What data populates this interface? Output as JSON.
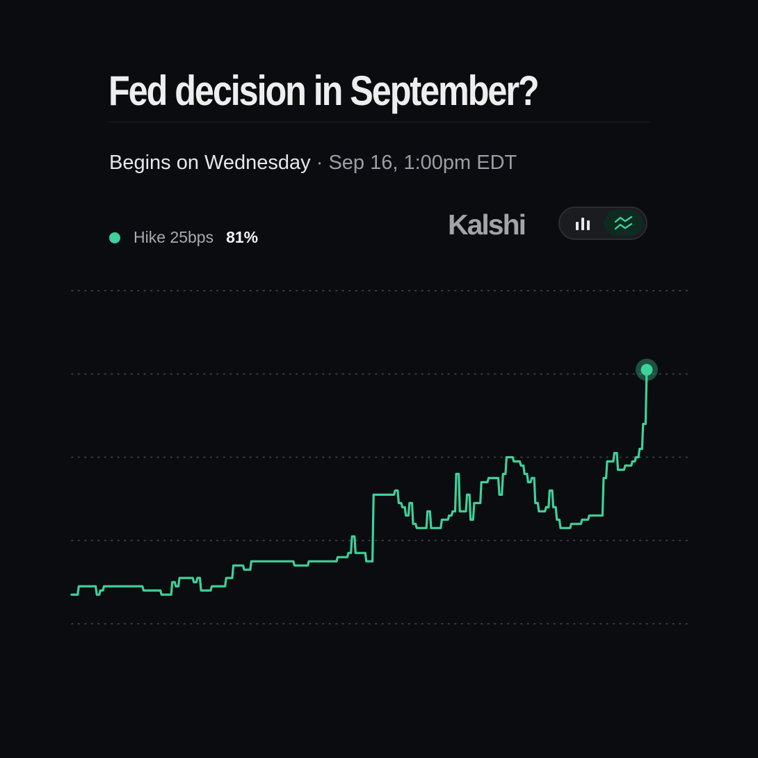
{
  "header": {
    "title": "Fed decision in September?",
    "subtitle_main": "Begins on Wednesday",
    "subtitle_sep": " · ",
    "subtitle_when": "Sep 16, 1:00pm EDT"
  },
  "brand": {
    "name": "Kalshi"
  },
  "toggle": {
    "options": [
      {
        "icon": "bar-chart-icon",
        "selected": false
      },
      {
        "icon": "line-chart-icon",
        "selected": true
      }
    ]
  },
  "legend": {
    "name": "Hike 25bps",
    "value": "81%"
  },
  "colors": {
    "background": "#0b0c0f",
    "series": "#3ed19a",
    "grid": "#3a3c42",
    "muted_text": "#a8abb0"
  },
  "chart_data": {
    "type": "line",
    "title": "Fed decision in September?",
    "grid": "dotted horizontal",
    "series": [
      {
        "name": "Hike 25bps",
        "last_value": 81,
        "values": [
          27,
          27,
          29,
          29,
          29,
          29,
          29,
          27,
          28,
          29,
          29,
          29,
          29,
          29,
          29,
          29,
          29,
          29,
          29,
          29,
          28,
          28,
          28,
          28,
          28,
          27,
          27,
          27,
          30,
          29,
          31,
          31,
          31,
          31,
          30,
          31,
          28,
          28,
          28,
          29,
          29,
          29,
          29,
          31,
          31,
          34,
          34,
          34,
          33,
          33,
          35,
          35,
          35,
          35,
          35,
          35,
          35,
          35,
          35,
          35,
          35,
          35,
          34,
          34,
          34,
          34,
          35,
          35,
          35,
          35,
          35,
          35,
          35,
          35,
          36,
          36,
          36,
          37,
          41,
          37,
          37,
          37,
          35,
          35,
          51,
          51,
          51,
          51,
          51,
          51,
          52,
          49,
          48,
          46,
          49,
          44,
          43,
          43,
          43,
          47,
          43,
          43,
          43,
          45,
          45,
          46,
          47,
          56,
          47,
          47,
          51,
          45,
          49,
          49,
          54,
          54,
          55,
          55,
          55,
          51,
          56,
          60,
          60,
          59,
          59,
          58,
          56,
          54,
          55,
          49,
          47,
          47,
          48,
          52,
          48,
          45,
          43,
          43,
          43,
          44,
          44,
          44,
          45,
          45,
          46,
          46,
          46,
          46,
          55,
          59,
          59,
          61,
          57,
          57,
          58,
          58,
          59,
          60,
          62,
          68,
          81
        ]
      }
    ]
  }
}
